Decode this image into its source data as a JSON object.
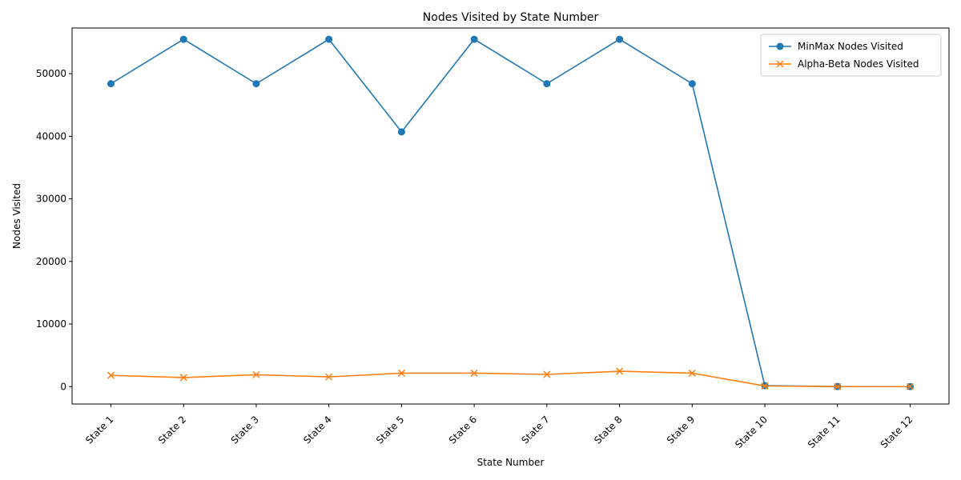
{
  "chart_data": {
    "type": "line",
    "title": "Nodes Visited by State Number",
    "xlabel": "State Number",
    "ylabel": "Nodes Visited",
    "categories": [
      "State 1",
      "State 2",
      "State 3",
      "State 4",
      "State 5",
      "State 6",
      "State 7",
      "State 8",
      "State 9",
      "State 10",
      "State 11",
      "State 12"
    ],
    "ylim": [
      -2780,
      57300
    ],
    "yticks": [
      0,
      10000,
      20000,
      30000,
      40000,
      50000
    ],
    "grid": false,
    "legend_position": "top-right",
    "series": [
      {
        "name": "MinMax Nodes Visited",
        "color": "#1f77b4",
        "marker": "circle",
        "values": [
          48400,
          55500,
          48400,
          55500,
          40700,
          55500,
          48400,
          55500,
          48400,
          150,
          10,
          0
        ]
      },
      {
        "name": "Alpha-Beta Nodes Visited",
        "color": "#ff7f0e",
        "marker": "x",
        "values": [
          1800,
          1450,
          1900,
          1550,
          2150,
          2150,
          1950,
          2450,
          2150,
          100,
          0,
          0
        ]
      }
    ]
  }
}
